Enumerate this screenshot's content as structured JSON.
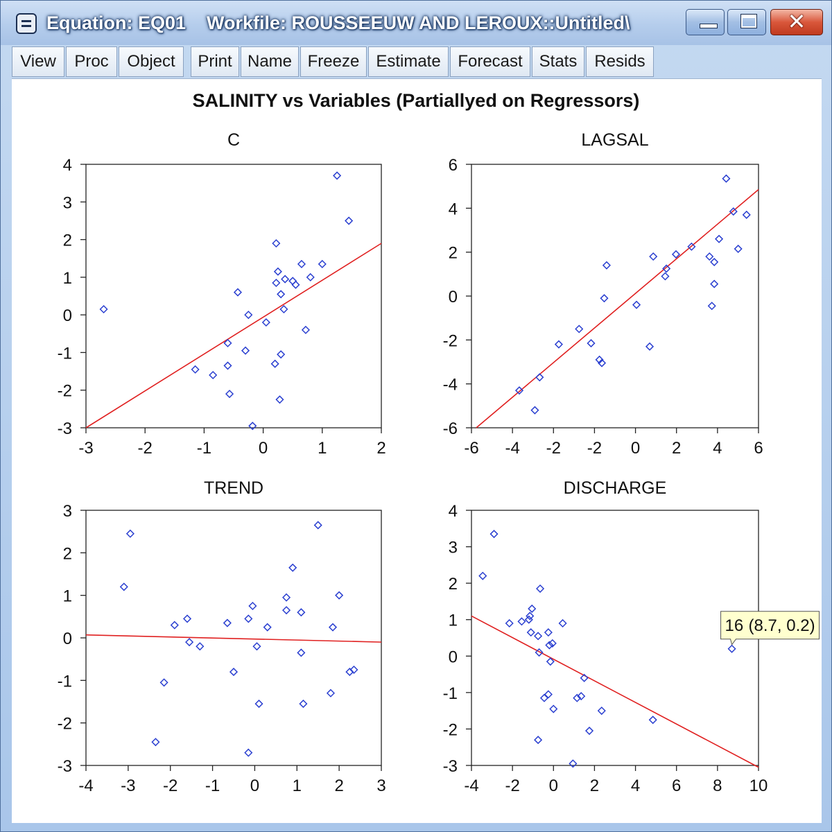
{
  "window": {
    "title": "Equation: EQ01    Workfile: ROUSSEEUW AND LEROUX::Untitled\\",
    "buttons": [
      "minimize",
      "maximize",
      "close"
    ]
  },
  "toolbar": {
    "items": [
      "View",
      "Proc",
      "Object",
      "Print",
      "Name",
      "Freeze",
      "Estimate",
      "Forecast",
      "Stats",
      "Resids"
    ]
  },
  "figure_title": "SALINITY vs Variables (Partiallyed on Regressors)",
  "colors": {
    "points": "#2a3fd0",
    "fit_line": "#e02020",
    "title_bar": "#b5cdec"
  },
  "tooltip": {
    "label": "16",
    "coords": "(8.7, 0.2)",
    "x": 8.7,
    "y": 0.2
  },
  "chart_data": [
    {
      "type": "scatter",
      "title": "C",
      "xlim": [
        -3,
        2
      ],
      "ylim": [
        -3,
        4
      ],
      "xticks": [
        "-3",
        "-2",
        "-1",
        "0",
        "1",
        "2"
      ],
      "yticks": [
        "4",
        "3",
        "2",
        "1",
        "0",
        "-1",
        "-2",
        "-3"
      ],
      "fit_line": [
        [
          -3,
          -3.0
        ],
        [
          2,
          1.9
        ]
      ],
      "points": [
        [
          -2.7,
          0.15
        ],
        [
          -1.15,
          -1.45
        ],
        [
          -0.85,
          -1.6
        ],
        [
          -0.6,
          -0.75
        ],
        [
          -0.6,
          -1.35
        ],
        [
          -0.57,
          -2.1
        ],
        [
          -0.43,
          0.6
        ],
        [
          -0.3,
          -0.95
        ],
        [
          -0.25,
          0.0
        ],
        [
          -0.18,
          -2.95
        ],
        [
          0.05,
          -0.2
        ],
        [
          0.2,
          -1.3
        ],
        [
          0.22,
          0.85
        ],
        [
          0.22,
          1.9
        ],
        [
          0.25,
          1.15
        ],
        [
          0.28,
          -2.25
        ],
        [
          0.3,
          0.55
        ],
        [
          0.3,
          -1.05
        ],
        [
          0.35,
          0.15
        ],
        [
          0.37,
          0.95
        ],
        [
          0.5,
          0.9
        ],
        [
          0.55,
          0.8
        ],
        [
          0.65,
          1.35
        ],
        [
          0.72,
          -0.4
        ],
        [
          0.8,
          1.0
        ],
        [
          1.0,
          1.35
        ],
        [
          1.25,
          3.7
        ],
        [
          1.45,
          2.5
        ]
      ]
    },
    {
      "type": "scatter",
      "title": "LAGSAL",
      "xlim": [
        -6,
        6
      ],
      "ylim": [
        -6,
        6
      ],
      "xticks": [
        "-6",
        "-4",
        "-2",
        "-2",
        "0",
        "2",
        "4",
        "6"
      ],
      "yticks": [
        "6",
        "4",
        "2",
        "0",
        "-2",
        "-4",
        "-6"
      ],
      "fit_line": [
        [
          -5.8,
          -6.0
        ],
        [
          6.0,
          4.85
        ]
      ],
      "points": [
        [
          -4.0,
          -4.3
        ],
        [
          -3.35,
          -5.2
        ],
        [
          -3.15,
          -3.7
        ],
        [
          -2.35,
          -2.2
        ],
        [
          -1.5,
          -1.5
        ],
        [
          -1.0,
          -2.15
        ],
        [
          -0.65,
          -2.9
        ],
        [
          -0.55,
          -3.05
        ],
        [
          -0.45,
          -0.1
        ],
        [
          -0.35,
          1.4
        ],
        [
          0.9,
          -0.4
        ],
        [
          1.45,
          -2.3
        ],
        [
          1.6,
          1.8
        ],
        [
          2.1,
          0.9
        ],
        [
          2.15,
          1.25
        ],
        [
          2.55,
          1.9
        ],
        [
          3.2,
          2.25
        ],
        [
          3.95,
          1.8
        ],
        [
          4.05,
          -0.45
        ],
        [
          4.15,
          1.55
        ],
        [
          4.15,
          0.55
        ],
        [
          4.35,
          2.6
        ],
        [
          4.65,
          5.35
        ],
        [
          4.95,
          3.85
        ],
        [
          5.15,
          2.15
        ],
        [
          5.5,
          3.7
        ]
      ]
    },
    {
      "type": "scatter",
      "title": "TREND",
      "xlim": [
        -4,
        3
      ],
      "ylim": [
        -3,
        3
      ],
      "xticks": [
        "-4",
        "-3",
        "-2",
        "-1",
        "0",
        "1",
        "2",
        "3"
      ],
      "yticks": [
        "3",
        "2",
        "1",
        "0",
        "-1",
        "-2",
        "-3"
      ],
      "fit_line": [
        [
          -4,
          0.07
        ],
        [
          3,
          -0.1
        ]
      ],
      "points": [
        [
          -3.1,
          1.2
        ],
        [
          -2.95,
          2.45
        ],
        [
          -2.35,
          -2.45
        ],
        [
          -2.15,
          -1.05
        ],
        [
          -1.9,
          0.3
        ],
        [
          -1.6,
          0.45
        ],
        [
          -1.55,
          -0.1
        ],
        [
          -1.3,
          -0.2
        ],
        [
          -0.65,
          0.35
        ],
        [
          -0.5,
          -0.8
        ],
        [
          -0.15,
          -2.7
        ],
        [
          -0.15,
          0.45
        ],
        [
          -0.05,
          0.75
        ],
        [
          0.05,
          -0.2
        ],
        [
          0.1,
          -1.55
        ],
        [
          0.3,
          0.25
        ],
        [
          0.75,
          0.95
        ],
        [
          0.75,
          0.65
        ],
        [
          0.9,
          1.65
        ],
        [
          1.1,
          0.6
        ],
        [
          1.1,
          -0.35
        ],
        [
          1.15,
          -1.55
        ],
        [
          1.5,
          2.65
        ],
        [
          1.8,
          -1.3
        ],
        [
          1.85,
          0.25
        ],
        [
          2.0,
          1.0
        ],
        [
          2.25,
          -0.8
        ],
        [
          2.35,
          -0.75
        ]
      ]
    },
    {
      "type": "scatter",
      "title": "DISCHARGE",
      "xlim": [
        -4,
        10
      ],
      "ylim": [
        -3,
        4
      ],
      "xticks": [
        "-4",
        "-2",
        "0",
        "2",
        "4",
        "6",
        "8",
        "10"
      ],
      "yticks": [
        "4",
        "3",
        "2",
        "1",
        "0",
        "-1",
        "-2",
        "-3"
      ],
      "fit_line": [
        [
          -4,
          1.1
        ],
        [
          10,
          -3.05
        ]
      ],
      "points": [
        [
          -3.45,
          2.2
        ],
        [
          -2.9,
          3.35
        ],
        [
          -2.15,
          0.9
        ],
        [
          -1.55,
          0.95
        ],
        [
          -1.2,
          1.0
        ],
        [
          -1.15,
          1.1
        ],
        [
          -1.1,
          0.65
        ],
        [
          -1.05,
          1.3
        ],
        [
          -0.75,
          0.55
        ],
        [
          -0.7,
          0.1
        ],
        [
          -0.75,
          -2.3
        ],
        [
          -0.65,
          1.85
        ],
        [
          -0.45,
          -1.15
        ],
        [
          -0.25,
          0.65
        ],
        [
          -0.25,
          -1.05
        ],
        [
          -0.2,
          0.3
        ],
        [
          -0.15,
          -0.15
        ],
        [
          -0.05,
          0.35
        ],
        [
          0.0,
          -1.45
        ],
        [
          0.45,
          0.9
        ],
        [
          0.95,
          -2.95
        ],
        [
          1.15,
          -1.15
        ],
        [
          1.35,
          -1.1
        ],
        [
          1.5,
          -0.6
        ],
        [
          1.75,
          -2.05
        ],
        [
          2.35,
          -1.5
        ],
        [
          4.85,
          -1.75
        ],
        [
          8.7,
          0.2
        ]
      ]
    }
  ]
}
